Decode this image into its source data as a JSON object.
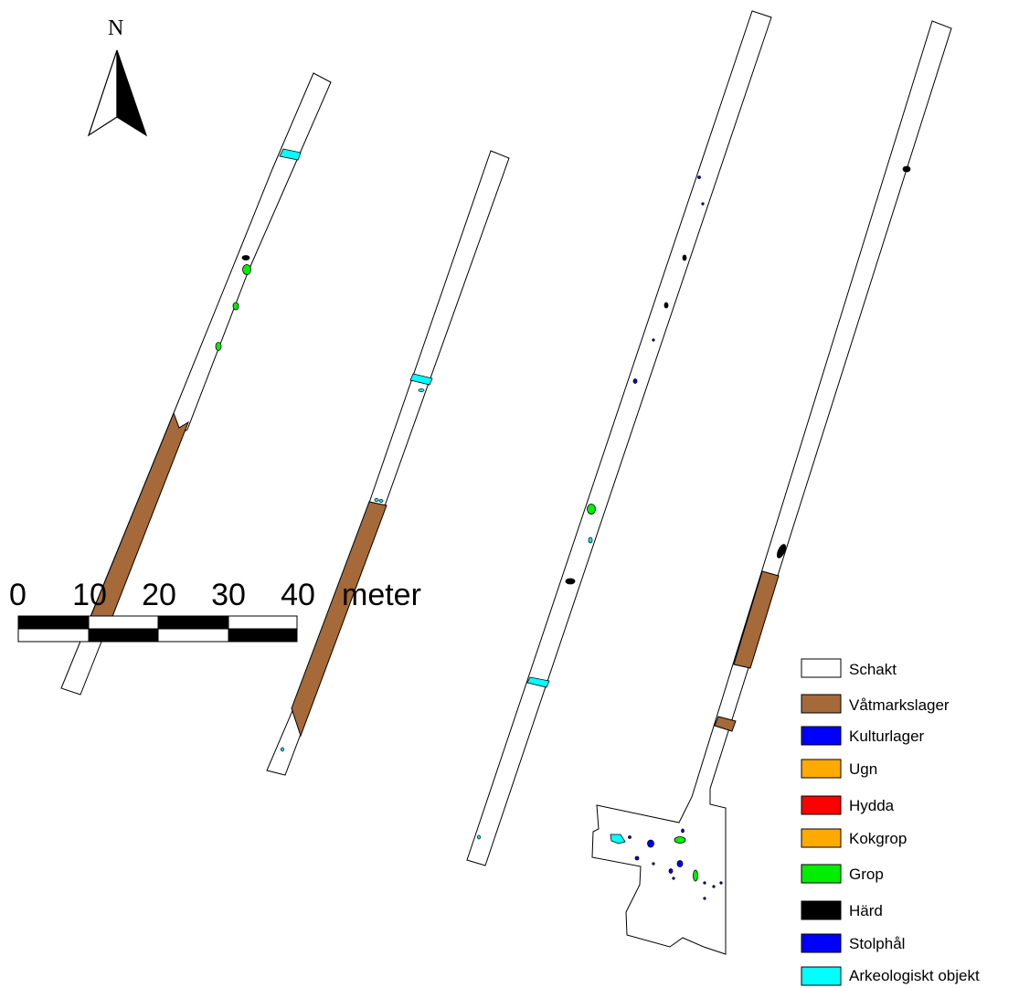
{
  "north_arrow": {
    "label": "N"
  },
  "scale_bar": {
    "ticks": [
      "0",
      "10",
      "20",
      "30",
      "40"
    ],
    "unit": "meter"
  },
  "legend": {
    "items": [
      {
        "label": "Schakt",
        "color": "#ffffff"
      },
      {
        "label": "Våtmarkslager",
        "color": "#a5693a"
      },
      {
        "label": "Kulturlager",
        "color": "#0000ff"
      },
      {
        "label": "Ugn",
        "color": "#ffaa00"
      },
      {
        "label": "Hydda",
        "color": "#ff0000"
      },
      {
        "label": "Kokgrop",
        "color": "#ffaa00"
      },
      {
        "label": "Grop",
        "color": "#00ee00"
      },
      {
        "label": "Härd",
        "color": "#000000"
      },
      {
        "label": "Stolphål",
        "color": "#0000ff"
      },
      {
        "label": "Arkeologiskt objekt",
        "color": "#00ffff"
      }
    ]
  },
  "colors": {
    "wetland": "#a5693a",
    "pit": "#00ee00",
    "hearth": "#000000",
    "posthole": "#0000ff",
    "object": "#00ffff"
  }
}
